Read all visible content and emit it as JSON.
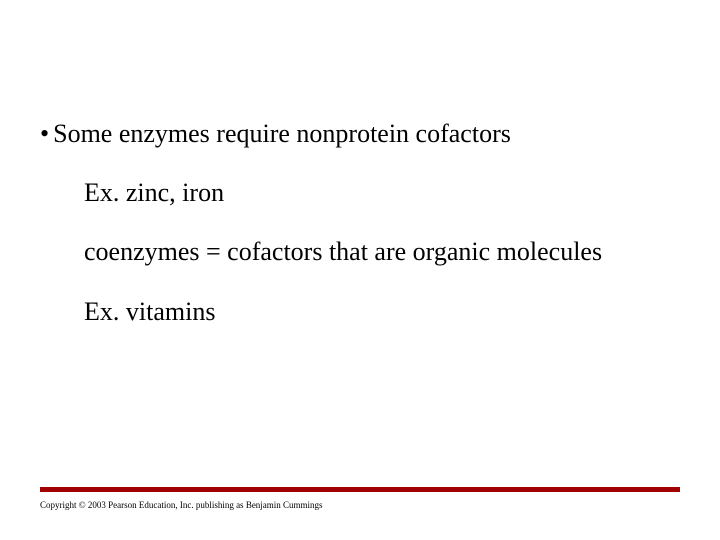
{
  "slide": {
    "bullet_symbol": "•",
    "main_bullet": "Some enzymes require nonprotein cofactors",
    "sub1": "Ex. zinc, iron",
    "sub2": "coenzymes = cofactors that are organic molecules",
    "sub3": "Ex. vitamins",
    "rule_color": "#a00000",
    "copyright": "Copyright © 2003 Pearson Education, Inc. publishing as Benjamin Cummings"
  }
}
